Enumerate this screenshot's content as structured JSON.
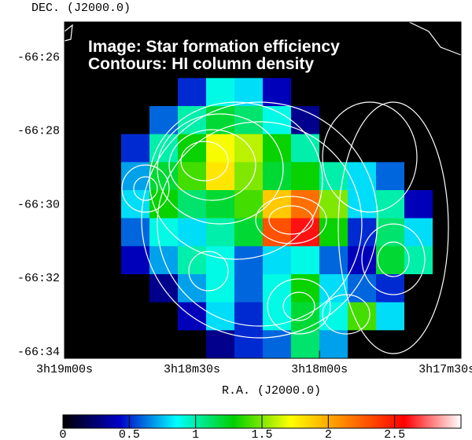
{
  "chart_data": {
    "type": "heatmap",
    "annotations": [
      "Image: Star formation efficiency",
      "Contours: HI column density"
    ],
    "xlabel": "R.A. (J2000.0)",
    "ylabel": "DEC. (J2000.0)",
    "xlim": [
      11940,
      11846.7
    ],
    "xticks": [
      {
        "value": 11940,
        "label": "3h19m00s"
      },
      {
        "value": 11910,
        "label": "3h18m30s"
      },
      {
        "value": 11880,
        "label": "3h18m00s"
      },
      {
        "value": 11850,
        "label": "3h17m30s"
      }
    ],
    "ylim": [
      -3994.17,
      -3985.04
    ],
    "yticks": [
      {
        "value": -3986,
        "label": "-66:26"
      },
      {
        "value": -3988,
        "label": "-66:28"
      },
      {
        "value": -3990,
        "label": "-66:30"
      },
      {
        "value": -3992,
        "label": "-66:32"
      },
      {
        "value": -3994,
        "label": "-66:34"
      }
    ],
    "clim": [
      0,
      3
    ],
    "cticks": [
      0,
      0.5,
      1,
      1.5,
      2,
      2.5
    ],
    "colormap": [
      "#000000",
      "#0000c8",
      "#00ffff",
      "#00d000",
      "#ffff00",
      "#ff8000",
      "#ff0000",
      "#ffffff"
    ],
    "z": [
      [
        0,
        0,
        0,
        0,
        0,
        0,
        0,
        0,
        0,
        0,
        0,
        0,
        0,
        0
      ],
      [
        0,
        0,
        0,
        0,
        0,
        0,
        0,
        0,
        0,
        0,
        0,
        0,
        0,
        0
      ],
      [
        0,
        0,
        0,
        0,
        0.5,
        0.9,
        0.8,
        0.4,
        0,
        0,
        0,
        0,
        0,
        0
      ],
      [
        0,
        0,
        0,
        0.6,
        1.0,
        1.2,
        1.1,
        0.9,
        0.3,
        0,
        0,
        0,
        0,
        0
      ],
      [
        0,
        0,
        0.5,
        1.0,
        1.3,
        1.7,
        1.6,
        1.3,
        1.0,
        0,
        0,
        0,
        0,
        0
      ],
      [
        0,
        0,
        0.7,
        1.2,
        1.4,
        1.8,
        1.5,
        1.2,
        1.3,
        1.0,
        0.8,
        0.6,
        0,
        0
      ],
      [
        0,
        0,
        0.8,
        1.3,
        1.1,
        1.2,
        1.4,
        1.9,
        2.2,
        1.5,
        0.8,
        1.0,
        0.4,
        0
      ],
      [
        0,
        0,
        0.6,
        0.9,
        0.8,
        1.0,
        1.2,
        2.3,
        2.6,
        1.3,
        0.5,
        1.1,
        0.8,
        0
      ],
      [
        0,
        0,
        0.4,
        0.7,
        1.0,
        0.9,
        0.6,
        0.8,
        0.9,
        0.6,
        0.4,
        1.2,
        1.0,
        0
      ],
      [
        0,
        0,
        0,
        0.3,
        0.7,
        0.9,
        0.6,
        0.9,
        1.3,
        0.8,
        0.6,
        0.5,
        0,
        0
      ],
      [
        0,
        0,
        0,
        0,
        0.4,
        0.8,
        0.5,
        0.9,
        1.2,
        0.9,
        1.4,
        0.8,
        0,
        0
      ],
      [
        0,
        0,
        0,
        0,
        0,
        0.3,
        0.5,
        0.6,
        1.1,
        0.7,
        0,
        0,
        0,
        0
      ]
    ]
  }
}
